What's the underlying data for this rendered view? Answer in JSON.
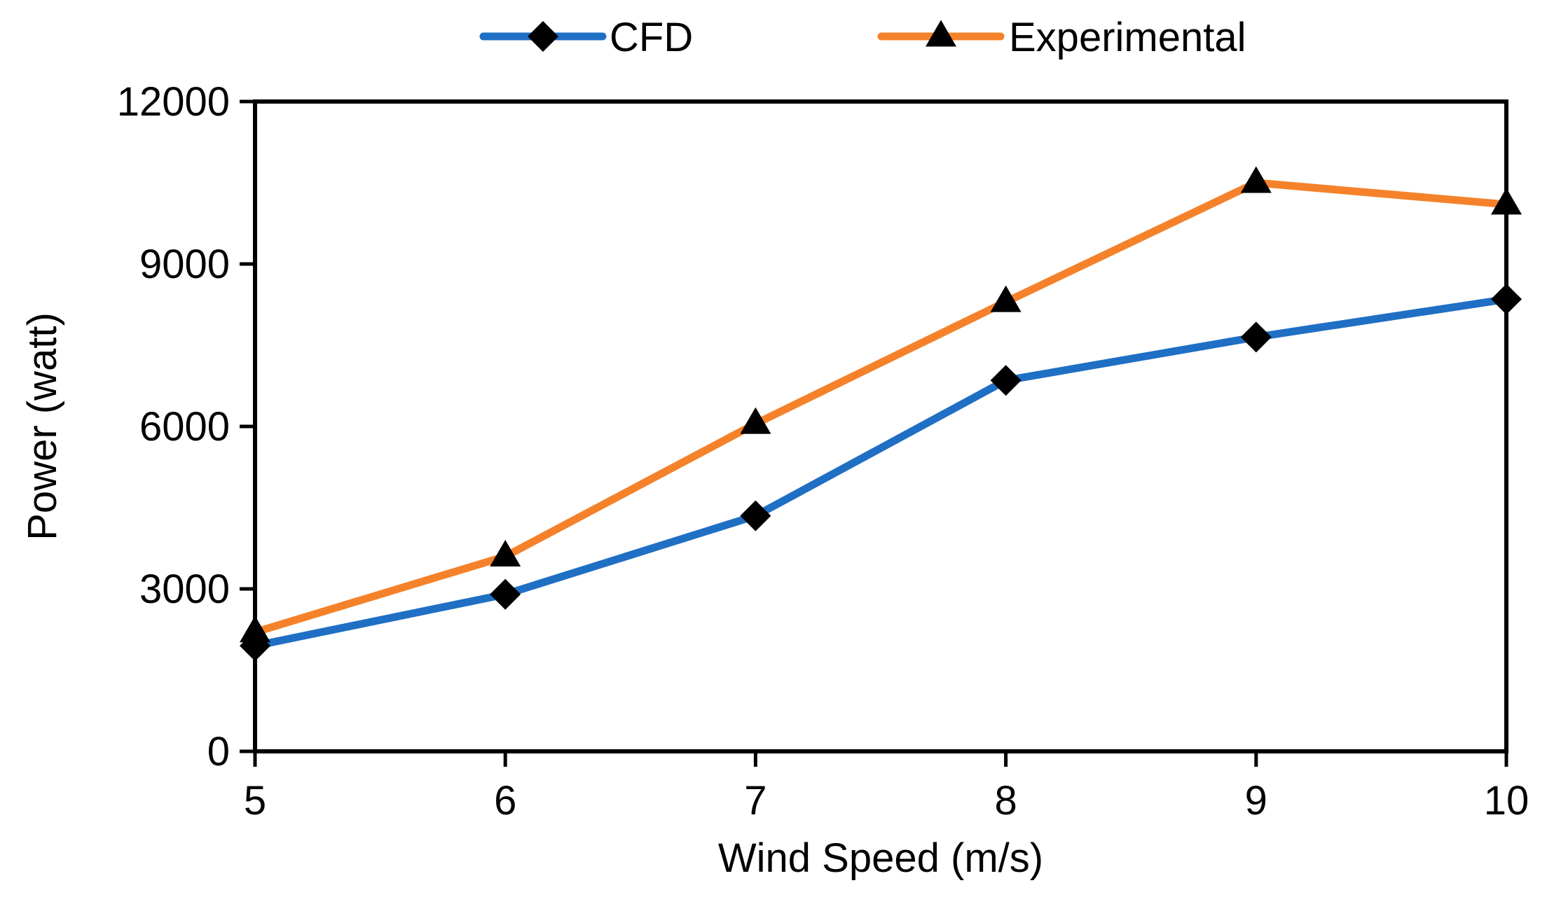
{
  "chart_data": {
    "type": "line",
    "title": "",
    "xlabel": "Wind Speed (m/s)",
    "ylabel": "Power (watt)",
    "x": [
      5,
      6,
      7,
      8,
      9,
      10
    ],
    "x_tick_labels": [
      "5",
      "6",
      "7",
      "8",
      "9",
      "10"
    ],
    "xlim": [
      5,
      10
    ],
    "ylim": [
      0,
      12000
    ],
    "y_ticks": [
      0,
      3000,
      6000,
      9000,
      12000
    ],
    "y_tick_labels": [
      "0",
      "3000",
      "6000",
      "9000",
      "12000"
    ],
    "grid": false,
    "legend_position": "top-center",
    "series": [
      {
        "name": "CFD",
        "color": "#1f6fc4",
        "marker": "diamond",
        "values": [
          1950,
          2900,
          4350,
          6850,
          7650,
          8350
        ]
      },
      {
        "name": "Experimental",
        "color": "#f5822a",
        "marker": "triangle",
        "values": [
          2200,
          3600,
          6050,
          8300,
          10500,
          10100
        ]
      }
    ]
  }
}
